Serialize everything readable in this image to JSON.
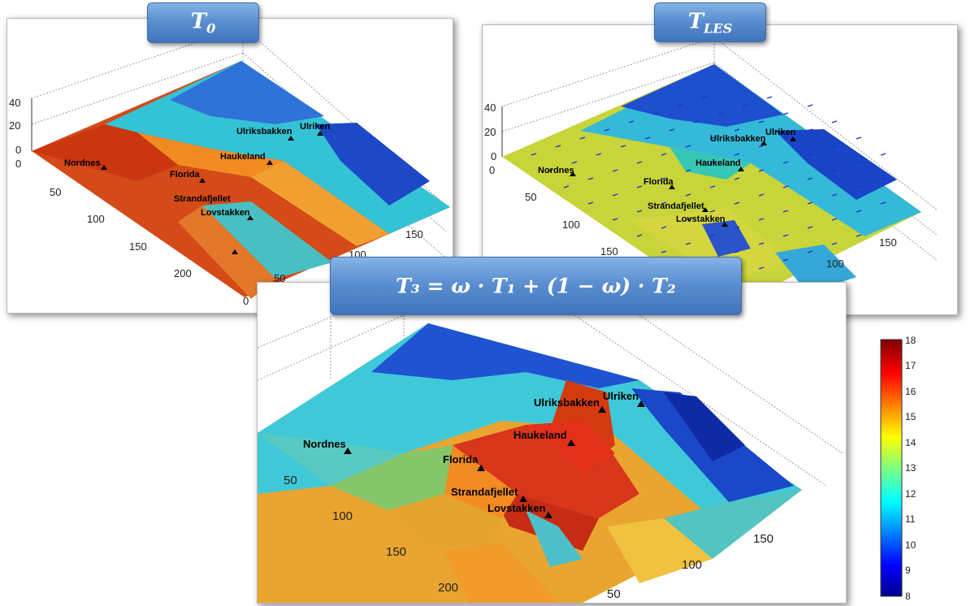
{
  "titles": {
    "panel1": {
      "base": "T",
      "sub": "0"
    },
    "panel2": {
      "base": "T",
      "sub": "LES"
    },
    "panel3": "T₃ = ω · T₁ + (1 − ω) · T₂"
  },
  "chart_data": [
    {
      "type": "heatmap",
      "panel": "T0",
      "title": "T0",
      "zlim": [
        0,
        40
      ],
      "z_ticks": [
        0,
        20,
        40
      ],
      "y_ticks": [
        0,
        50,
        100,
        150,
        200
      ],
      "x_ticks": [
        0,
        50,
        100,
        150
      ],
      "locations": [
        "Nordnes",
        "Florida",
        "Haukeland",
        "Ulriksbakken",
        "Ulriken",
        "Strandafjellet",
        "Lovstakken"
      ]
    },
    {
      "type": "heatmap",
      "panel": "TLES",
      "title": "TLES",
      "zlim": [
        0,
        40
      ],
      "z_ticks": [
        0,
        20,
        40
      ],
      "y_ticks": [
        0,
        50,
        100,
        150
      ],
      "x_ticks": [
        100,
        150
      ],
      "wind_vectors": true,
      "locations": [
        "Nordnes",
        "Florida",
        "Haukeland",
        "Ulriksbakken",
        "Ulriken",
        "Strandafjellet",
        "Lovstakken"
      ]
    },
    {
      "type": "heatmap",
      "panel": "T3",
      "title": "T3 = ω · T1 + (1 − ω) · T2",
      "y_ticks": [
        50,
        100,
        150,
        200
      ],
      "x_ticks": [
        50,
        100,
        150
      ],
      "locations": [
        "Nordnes",
        "Florida",
        "Haukeland",
        "Ulriksbakken",
        "Ulriken",
        "Strandafjellet",
        "Lovstakken"
      ],
      "colorbar": {
        "min": 8,
        "max": 18,
        "ticks": [
          8,
          9,
          10,
          11,
          12,
          13,
          14,
          15,
          16,
          17,
          18
        ],
        "colormap": "jet"
      }
    }
  ],
  "labels": {
    "p1": {
      "nordnes": "Nordnes",
      "florida": "Florida",
      "haukeland": "Haukeland",
      "ulriksbakken": "Ulriksbakken",
      "ulriken": "Ulriken",
      "strandafjellet": "Strandafjellet",
      "lovstakken": "Lovstakken"
    },
    "p2": {
      "nordnes": "Nordnes",
      "florida": "Florida",
      "haukeland": "Haukeland",
      "ulriksbakken": "Ulriksbakken",
      "ulriken": "Ulriken",
      "strandafjellet": "Strandafjellet",
      "lovstakken": "Lovstakken"
    },
    "p3": {
      "nordnes": "Nordnes",
      "florida": "Florida",
      "haukeland": "Haukeland",
      "ulriksbakken": "Ulriksbakken",
      "ulriken": "Ulriken",
      "strandafjellet": "Strandafjellet",
      "lovstakken": "Lovstakken"
    }
  },
  "ticks": {
    "p1": {
      "z40": "40",
      "z20": "20",
      "z0": "0",
      "y0": "0",
      "y50": "50",
      "y100": "100",
      "y150": "150",
      "y200": "200",
      "x0": "0",
      "x50": "50",
      "x100": "100",
      "x150": "150"
    },
    "p2": {
      "z40": "40",
      "z20": "20",
      "z0": "0",
      "y0": "0",
      "y50": "50",
      "y100": "100",
      "y150": "150",
      "x100": "100",
      "x150": "150"
    },
    "p3": {
      "y50": "50",
      "y100": "100",
      "y150": "150",
      "y200": "200",
      "x50": "50",
      "x100": "100",
      "x150": "150"
    },
    "cb": {
      "t8": "8",
      "t9": "9",
      "t10": "10",
      "t11": "11",
      "t12": "12",
      "t13": "13",
      "t14": "14",
      "t15": "15",
      "t16": "16",
      "t17": "17",
      "t18": "18"
    }
  },
  "colors": {
    "red": "#d33a10",
    "orange": "#f08a1c",
    "yellow": "#d9d838",
    "cyan": "#33c6d8",
    "blue": "#1c4fd0",
    "darkblue": "#0a1e9a",
    "title_blue": "#4f84cc"
  }
}
